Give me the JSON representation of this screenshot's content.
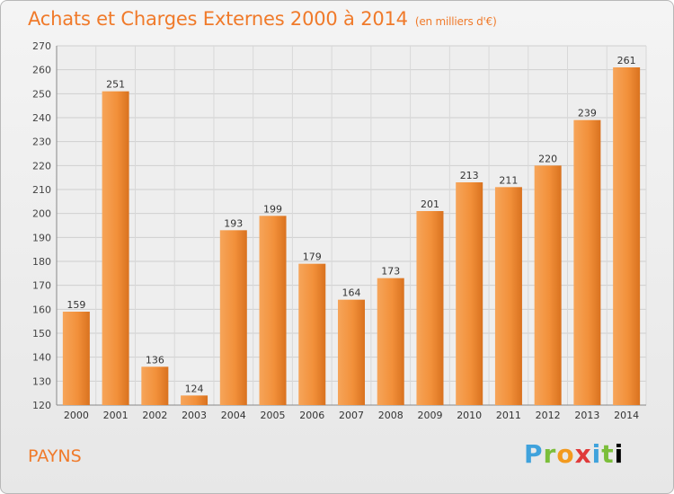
{
  "chart_data": {
    "type": "bar",
    "title": "Achats et Charges Externes 2000 à 2014",
    "subtitle": "(en milliers d'€)",
    "categories": [
      "2000",
      "2001",
      "2002",
      "2003",
      "2004",
      "2005",
      "2006",
      "2007",
      "2008",
      "2009",
      "2010",
      "2011",
      "2012",
      "2013",
      "2014"
    ],
    "values": [
      159,
      251,
      136,
      124,
      193,
      199,
      179,
      164,
      173,
      201,
      213,
      211,
      220,
      239,
      261
    ],
    "ylim": [
      120,
      270
    ],
    "yticks": [
      120,
      130,
      140,
      150,
      160,
      170,
      180,
      190,
      200,
      210,
      220,
      230,
      240,
      250,
      260,
      270
    ],
    "grid": true,
    "bar_color": "#f0882e",
    "bar_color_light": "#f6a85a",
    "xlabel": "",
    "ylabel": ""
  },
  "footer": {
    "commune": "PAYNS",
    "logo": "Proxiti"
  }
}
